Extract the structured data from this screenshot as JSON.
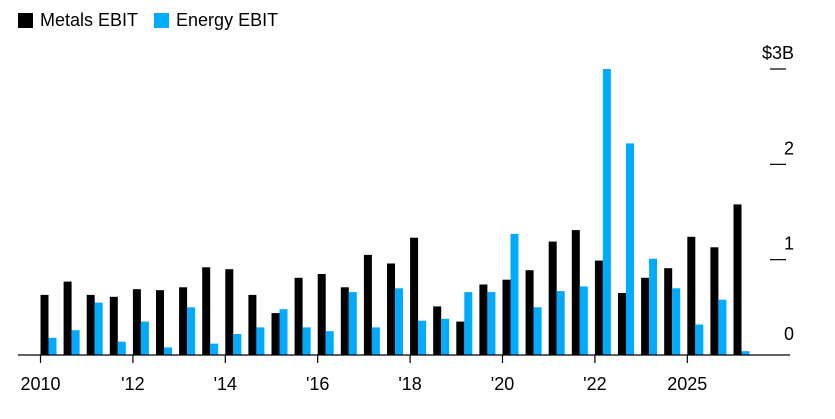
{
  "chart_data": {
    "type": "bar",
    "title": "",
    "xlabel": "",
    "ylabel": "",
    "ylim": [
      0,
      3
    ],
    "y_ticks": [
      {
        "value": 0,
        "label": "0"
      },
      {
        "value": 1,
        "label": "1"
      },
      {
        "value": 2,
        "label": "2"
      },
      {
        "value": 3,
        "label": "$3B"
      }
    ],
    "x_ticks": [
      "2010",
      "'12",
      "'14",
      "'16",
      "'18",
      "'20",
      "'22",
      "2025"
    ],
    "legend_position": "top-left",
    "categories": [
      "2010 H1",
      "2010 H2",
      "2011 H1",
      "2011 H2",
      "2012 H1",
      "2012 H2",
      "2013 H1",
      "2013 H2",
      "2014 H1",
      "2014 H2",
      "2015 H1",
      "2015 H2",
      "2016 H1",
      "2016 H2",
      "2017 H1",
      "2017 H2",
      "2018 H1",
      "2018 H2",
      "2019 H1",
      "2019 H2",
      "2020 H1",
      "2020 H2",
      "2021 H1",
      "2021 H2",
      "2022 H1",
      "2022 H2",
      "2023 H1",
      "2023 H2",
      "2024 H1",
      "2024 H2",
      "2025 H1"
    ],
    "series": [
      {
        "name": "Metals EBIT",
        "color": "#000000",
        "values": [
          0.63,
          0.77,
          0.63,
          0.61,
          0.69,
          0.68,
          0.71,
          0.92,
          0.9,
          0.63,
          0.44,
          0.81,
          0.85,
          0.71,
          1.05,
          0.96,
          1.23,
          0.51,
          0.35,
          0.74,
          0.79,
          0.89,
          1.19,
          1.31,
          0.99,
          0.65,
          0.81,
          0.91,
          1.24,
          1.13,
          1.58
        ]
      },
      {
        "name": "Energy EBIT",
        "color": "#00aaff",
        "values": [
          0.18,
          0.26,
          0.55,
          0.14,
          0.35,
          0.08,
          0.5,
          0.12,
          0.22,
          0.29,
          0.48,
          0.29,
          0.25,
          0.66,
          0.29,
          0.7,
          0.36,
          0.38,
          0.66,
          0.66,
          1.27,
          0.5,
          0.67,
          0.72,
          3.0,
          2.22,
          1.01,
          0.7,
          0.32,
          0.58,
          0.04
        ]
      }
    ]
  }
}
